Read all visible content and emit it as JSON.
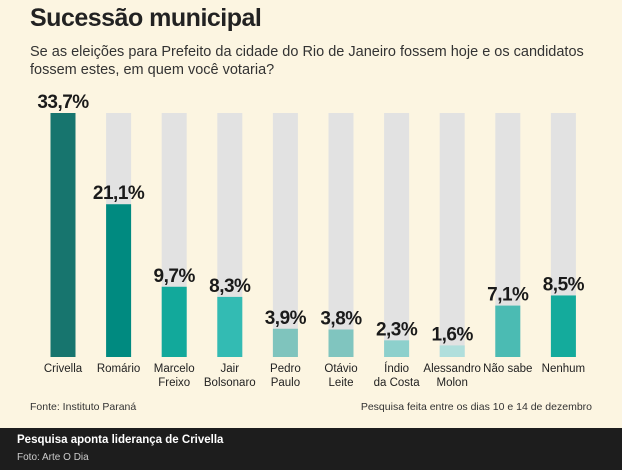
{
  "chart_data": {
    "type": "bar",
    "title": "Sucessão municipal",
    "subtitle": "Se as eleições para Prefeito da cidade do Rio de Janeiro fossem hoje e os candidatos fossem estes, em quem você votaria?",
    "categories": [
      [
        "Crivella"
      ],
      [
        "Romário"
      ],
      [
        "Marcelo",
        "Freixo"
      ],
      [
        "Jair",
        "Bolsonaro"
      ],
      [
        "Pedro",
        "Paulo"
      ],
      [
        "Otávio",
        "Leite"
      ],
      [
        "Índio",
        "da Costa"
      ],
      [
        "Alessandro",
        "Molon"
      ],
      [
        "Não sabe"
      ],
      [
        "Nenhum"
      ]
    ],
    "values": [
      33.7,
      21.1,
      9.7,
      8.3,
      3.9,
      3.8,
      2.3,
      1.6,
      7.1,
      8.5
    ],
    "value_labels": [
      "33,7%",
      "21,1%",
      "9,7%",
      "8,3%",
      "3,9%",
      "3,8%",
      "2,3%",
      "1,6%",
      "7,1%",
      "8,5%"
    ],
    "colors": [
      "#17756e",
      "#008a80",
      "#12a99b",
      "#33bbb3",
      "#7fc4bd",
      "#80c5bf",
      "#8dd0cc",
      "#b0dfdc",
      "#4bbbb3",
      "#14ab9c"
    ],
    "track_color": "#e2e2e2",
    "ylim": [
      0,
      33.7
    ],
    "xlabel": "",
    "ylabel": "",
    "source": "Fonte: Instituto Paraná",
    "note": "Pesquisa feita entre os dias 10 e 14 de dezembro"
  },
  "caption": {
    "title": "Pesquisa aponta liderança de Crivella",
    "credit": "Foto: Arte O Dia"
  }
}
